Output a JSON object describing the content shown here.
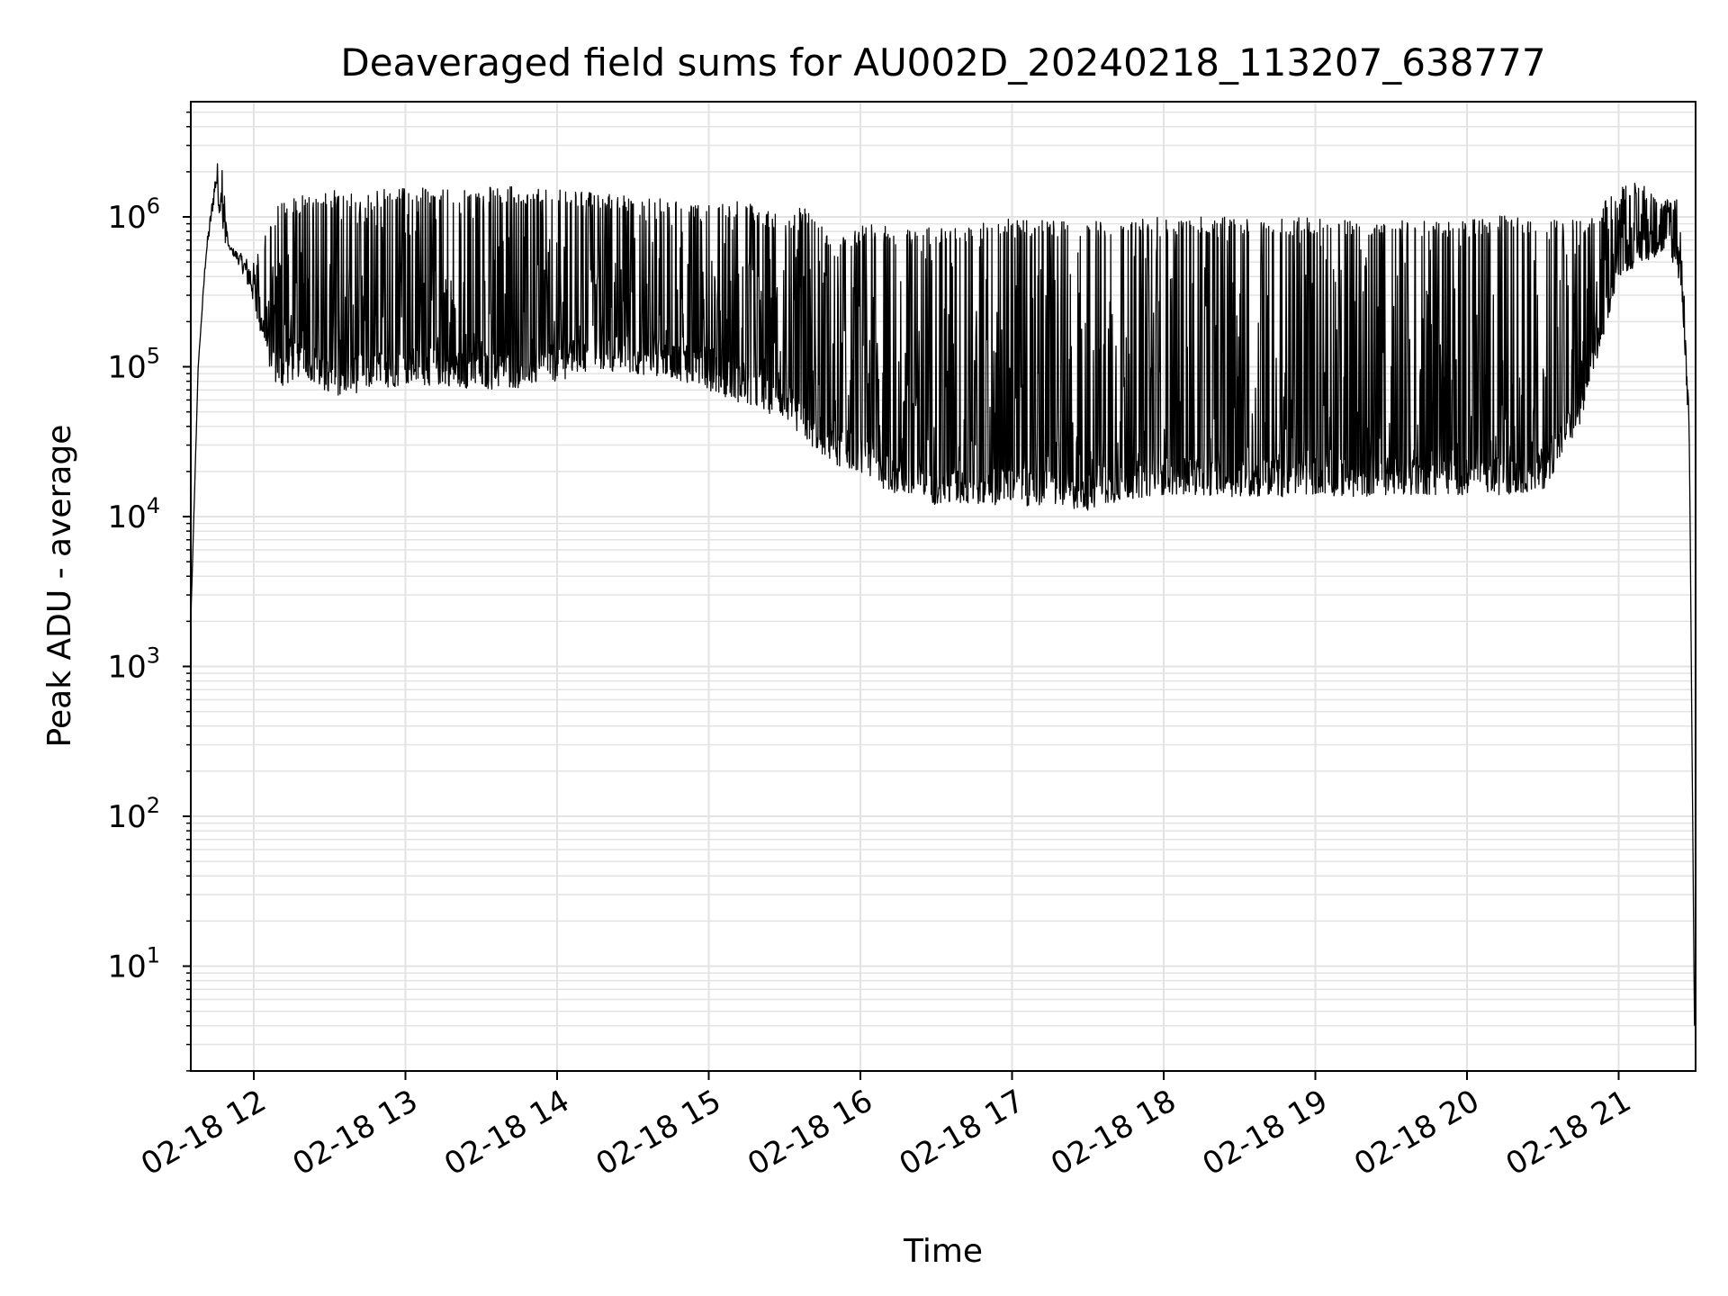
{
  "chart_data": {
    "type": "line",
    "title": "Deaveraged field sums for AU002D_20240218_113207_638777",
    "xlabel": "Time",
    "ylabel": "Peak ADU - average",
    "yscale": "log",
    "xlim": [
      "02-18 11:35",
      "02-18 21:30"
    ],
    "ylim": [
      2,
      6000000
    ],
    "grid": true,
    "line_color": "#000000",
    "grid_color": "#e3e3e3",
    "x_ticks": [
      {
        "label": "02-18 12",
        "hour": 12
      },
      {
        "label": "02-18 13",
        "hour": 13
      },
      {
        "label": "02-18 14",
        "hour": 14
      },
      {
        "label": "02-18 15",
        "hour": 15
      },
      {
        "label": "02-18 16",
        "hour": 16
      },
      {
        "label": "02-18 17",
        "hour": 17
      },
      {
        "label": "02-18 18",
        "hour": 18
      },
      {
        "label": "02-18 19",
        "hour": 19
      },
      {
        "label": "02-18 20",
        "hour": 20
      },
      {
        "label": "02-18 21",
        "hour": 21
      }
    ],
    "y_ticks": [
      {
        "base": "10",
        "exp": "1",
        "value": 10
      },
      {
        "base": "10",
        "exp": "2",
        "value": 100
      },
      {
        "base": "10",
        "exp": "3",
        "value": 1000
      },
      {
        "base": "10",
        "exp": "4",
        "value": 10000
      },
      {
        "base": "10",
        "exp": "5",
        "value": 100000
      },
      {
        "base": "10",
        "exp": "6",
        "value": 1000000
      }
    ],
    "series": [
      {
        "lower_envelope": [
          {
            "t": "11:35",
            "v": 1800
          },
          {
            "t": "11:38",
            "v": 100000
          },
          {
            "t": "11:41",
            "v": 500000
          },
          {
            "t": "11:45",
            "v": 1500000
          },
          {
            "t": "11:48",
            "v": 700000
          },
          {
            "t": "11:55",
            "v": 450000
          },
          {
            "t": "12:00",
            "v": 250000
          },
          {
            "t": "12:05",
            "v": 110000
          },
          {
            "t": "12:10",
            "v": 70000
          },
          {
            "t": "12:20",
            "v": 90000
          },
          {
            "t": "12:30",
            "v": 60000
          },
          {
            "t": "12:45",
            "v": 70000
          },
          {
            "t": "13:00",
            "v": 75000
          },
          {
            "t": "13:15",
            "v": 75000
          },
          {
            "t": "13:30",
            "v": 70000
          },
          {
            "t": "13:45",
            "v": 72000
          },
          {
            "t": "14:00",
            "v": 80000
          },
          {
            "t": "14:15",
            "v": 95000
          },
          {
            "t": "14:30",
            "v": 90000
          },
          {
            "t": "14:45",
            "v": 85000
          },
          {
            "t": "15:00",
            "v": 70000
          },
          {
            "t": "15:15",
            "v": 55000
          },
          {
            "t": "15:30",
            "v": 45000
          },
          {
            "t": "15:40",
            "v": 30000
          },
          {
            "t": "15:50",
            "v": 22000
          },
          {
            "t": "16:00",
            "v": 20000
          },
          {
            "t": "16:10",
            "v": 15000
          },
          {
            "t": "16:20",
            "v": 13000
          },
          {
            "t": "16:30",
            "v": 12000
          },
          {
            "t": "16:45",
            "v": 12000
          },
          {
            "t": "17:00",
            "v": 12000
          },
          {
            "t": "17:15",
            "v": 11500
          },
          {
            "t": "17:30",
            "v": 11000
          },
          {
            "t": "17:45",
            "v": 13000
          },
          {
            "t": "18:00",
            "v": 14000
          },
          {
            "t": "18:15",
            "v": 14000
          },
          {
            "t": "18:30",
            "v": 13500
          },
          {
            "t": "18:45",
            "v": 13500
          },
          {
            "t": "19:00",
            "v": 14000
          },
          {
            "t": "19:15",
            "v": 13500
          },
          {
            "t": "19:30",
            "v": 14000
          },
          {
            "t": "19:45",
            "v": 14000
          },
          {
            "t": "20:00",
            "v": 14000
          },
          {
            "t": "20:15",
            "v": 14000
          },
          {
            "t": "20:30",
            "v": 15000
          },
          {
            "t": "20:45",
            "v": 40000
          },
          {
            "t": "21:00",
            "v": 400000
          },
          {
            "t": "21:10",
            "v": 500000
          },
          {
            "t": "21:20",
            "v": 600000
          },
          {
            "t": "21:25",
            "v": 300000
          },
          {
            "t": "21:28",
            "v": 30000
          },
          {
            "t": "21:30",
            "v": 4
          }
        ],
        "upper_envelope": [
          {
            "t": "11:35",
            "v": 1800
          },
          {
            "t": "11:38",
            "v": 100000
          },
          {
            "t": "11:41",
            "v": 600000
          },
          {
            "t": "11:45",
            "v": 2100000
          },
          {
            "t": "11:47",
            "v": 3000000
          },
          {
            "t": "11:50",
            "v": 650000
          },
          {
            "t": "12:00",
            "v": 500000
          },
          {
            "t": "12:10",
            "v": 1300000
          },
          {
            "t": "12:20",
            "v": 1400000
          },
          {
            "t": "12:30",
            "v": 1500000
          },
          {
            "t": "12:45",
            "v": 1500000
          },
          {
            "t": "13:00",
            "v": 1550000
          },
          {
            "t": "13:15",
            "v": 1600000
          },
          {
            "t": "13:30",
            "v": 1600000
          },
          {
            "t": "13:45",
            "v": 1600000
          },
          {
            "t": "14:00",
            "v": 1550000
          },
          {
            "t": "14:15",
            "v": 1500000
          },
          {
            "t": "14:30",
            "v": 1400000
          },
          {
            "t": "14:45",
            "v": 1300000
          },
          {
            "t": "15:00",
            "v": 1200000
          },
          {
            "t": "15:15",
            "v": 1300000
          },
          {
            "t": "15:30",
            "v": 1000000
          },
          {
            "t": "15:40",
            "v": 1300000
          },
          {
            "t": "15:50",
            "v": 700000
          },
          {
            "t": "16:00",
            "v": 900000
          },
          {
            "t": "16:15",
            "v": 850000
          },
          {
            "t": "16:30",
            "v": 850000
          },
          {
            "t": "16:45",
            "v": 900000
          },
          {
            "t": "17:00",
            "v": 1000000
          },
          {
            "t": "17:15",
            "v": 950000
          },
          {
            "t": "17:30",
            "v": 950000
          },
          {
            "t": "17:45",
            "v": 950000
          },
          {
            "t": "18:00",
            "v": 1000000
          },
          {
            "t": "18:15",
            "v": 1000000
          },
          {
            "t": "18:30",
            "v": 1000000
          },
          {
            "t": "18:45",
            "v": 1000000
          },
          {
            "t": "19:00",
            "v": 1000000
          },
          {
            "t": "19:15",
            "v": 1000000
          },
          {
            "t": "19:30",
            "v": 950000
          },
          {
            "t": "19:45",
            "v": 950000
          },
          {
            "t": "20:00",
            "v": 950000
          },
          {
            "t": "20:15",
            "v": 1050000
          },
          {
            "t": "20:30",
            "v": 1000000
          },
          {
            "t": "20:45",
            "v": 1000000
          },
          {
            "t": "21:00",
            "v": 1500000
          },
          {
            "t": "21:07",
            "v": 1900000
          },
          {
            "t": "21:15",
            "v": 1400000
          },
          {
            "t": "21:22",
            "v": 1450000
          },
          {
            "t": "21:26",
            "v": 1000000
          },
          {
            "t": "21:28",
            "v": 30000
          },
          {
            "t": "21:30",
            "v": 4
          }
        ]
      }
    ]
  }
}
